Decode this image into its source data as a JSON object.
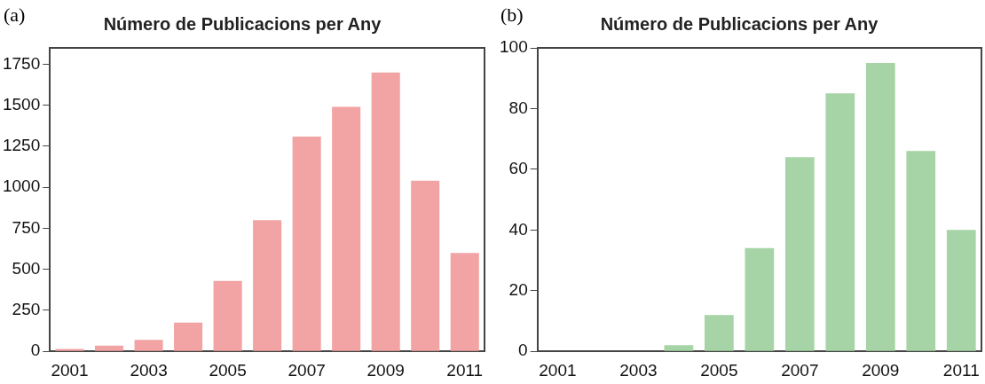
{
  "chart_data": [
    {
      "type": "bar",
      "title": "Número de Publicacions per Any",
      "annotations": [
        "(a)"
      ],
      "categories": [
        "2001",
        null,
        "2003",
        null,
        "2005",
        null,
        "2007",
        null,
        "2009",
        null,
        "2011"
      ],
      "series": [
        {
          "color": "#f2a3a3",
          "values": [
            15,
            35,
            70,
            175,
            430,
            800,
            1310,
            1490,
            1700,
            1040,
            600
          ]
        }
      ],
      "ylim": [
        0,
        1850
      ],
      "yticks": [
        0,
        250,
        500,
        750,
        1000,
        1250,
        1500,
        1750
      ],
      "grid": false,
      "legend": false
    },
    {
      "type": "bar",
      "title": "Número de Publicacions per Any",
      "annotations": [
        "(b)"
      ],
      "categories": [
        "2001",
        null,
        "2003",
        null,
        "2005",
        null,
        "2007",
        null,
        "2009",
        null,
        "2011"
      ],
      "series": [
        {
          "color": "#a6d4a6",
          "values": [
            0,
            0,
            0,
            2,
            12,
            34,
            64,
            85,
            95,
            66,
            40
          ]
        }
      ],
      "ylim": [
        0,
        100
      ],
      "yticks": [
        0,
        20,
        40,
        60,
        80,
        100
      ],
      "grid": false,
      "legend": false
    }
  ]
}
